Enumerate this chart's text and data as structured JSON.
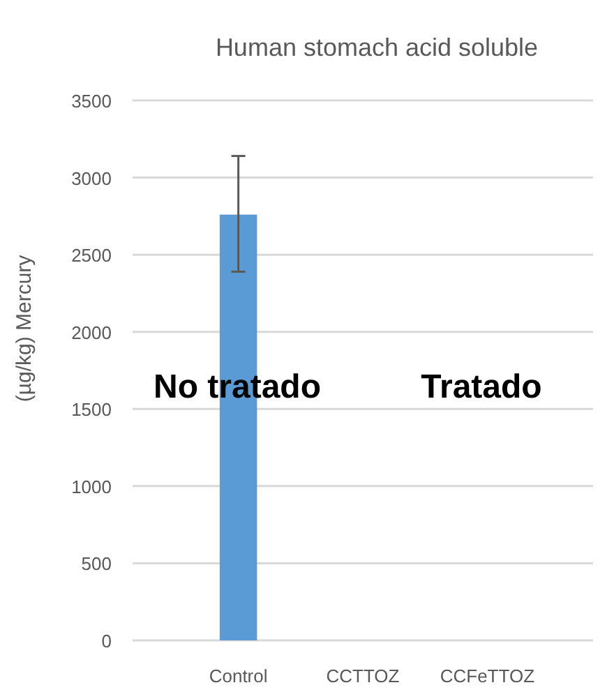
{
  "chart_data": {
    "type": "bar",
    "title": "Human stomach acid soluble",
    "ylabel": "(µg/kg) Mercury",
    "categories": [
      "Control",
      "CCTTOZ",
      "CCFeTTOZ"
    ],
    "values": [
      2760,
      0,
      0
    ],
    "color": "#5b9bd5",
    "errors": [
      [
        2390,
        3140
      ],
      null,
      null
    ],
    "ylim": [
      0,
      3500
    ],
    "yticks": [
      0,
      500,
      1000,
      1500,
      2000,
      2500,
      3000,
      3500
    ],
    "grid": "y",
    "annotations": [
      "No tratado",
      "Tratado"
    ]
  }
}
